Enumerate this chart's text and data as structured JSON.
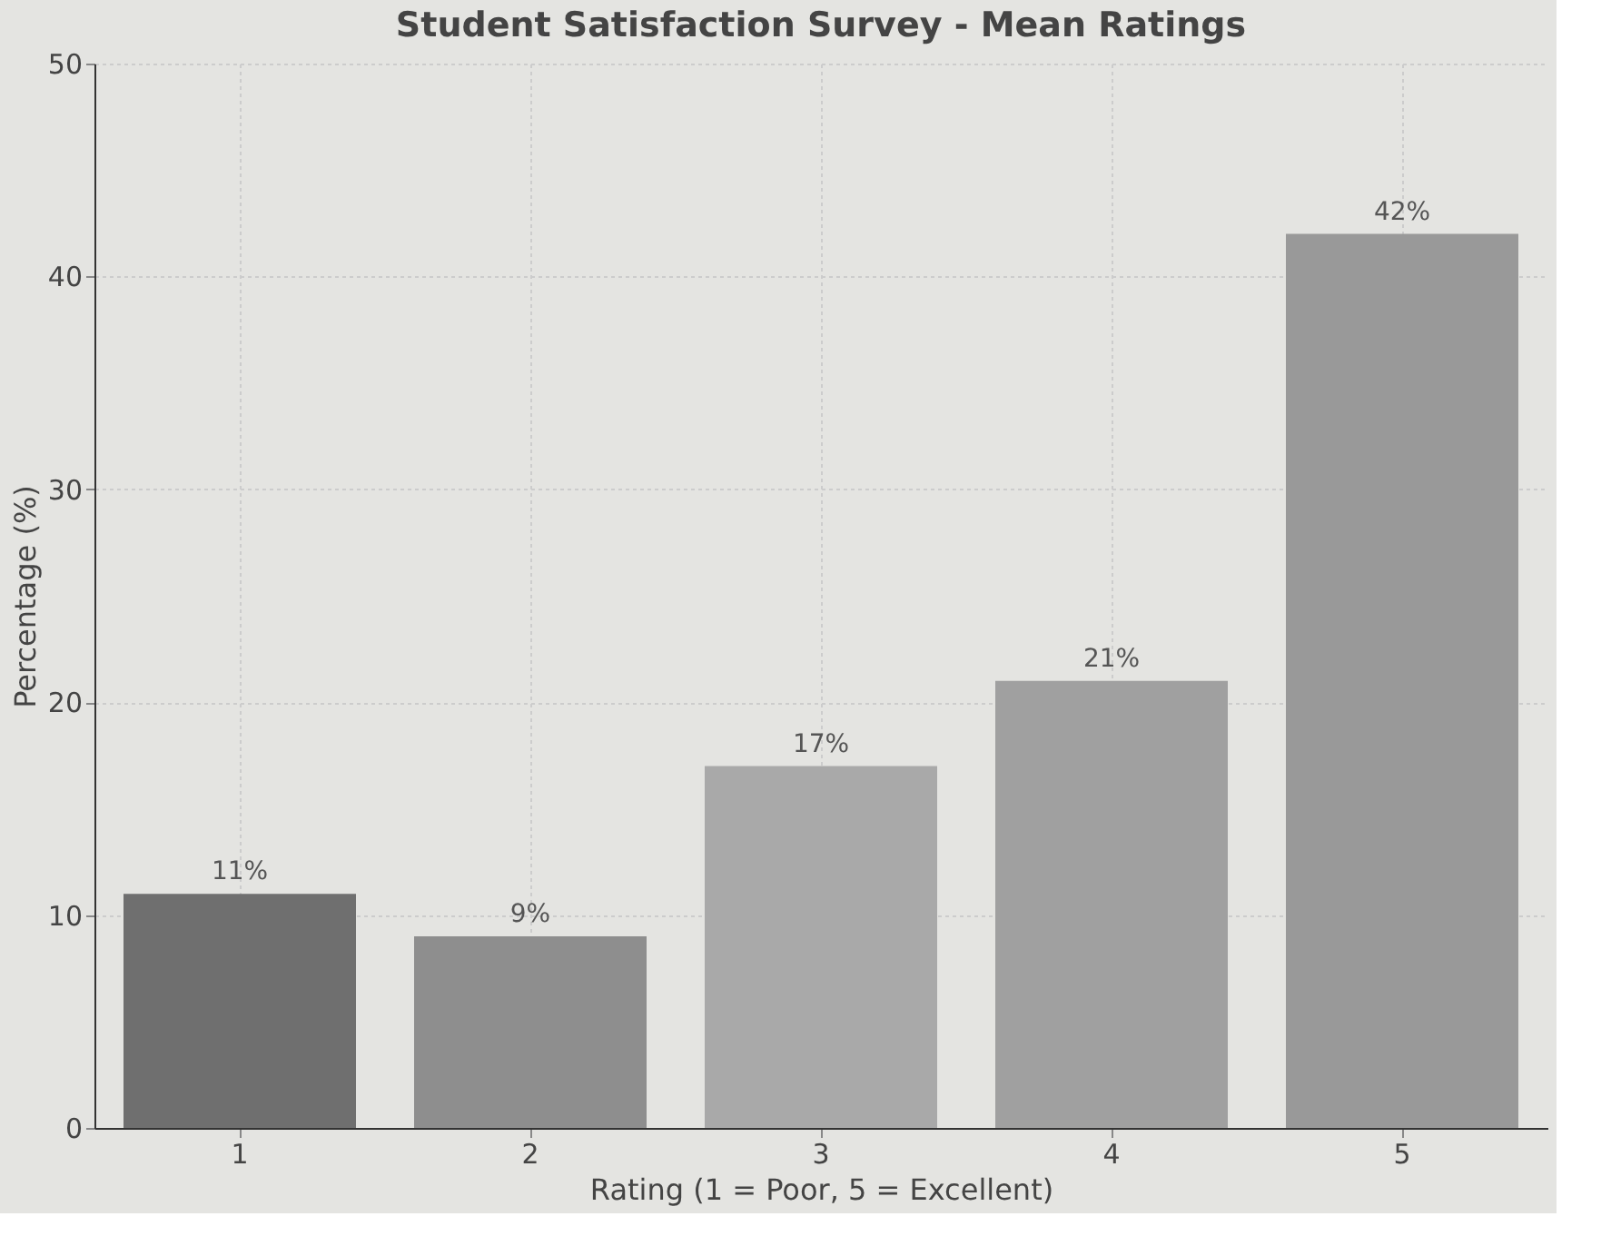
{
  "chart_data": {
    "type": "bar",
    "title": "Student Satisfaction Survey - Mean Ratings",
    "xlabel": "Rating (1 = Poor, 5 = Excellent)",
    "ylabel": "Percentage (%)",
    "categories": [
      "1",
      "2",
      "3",
      "4",
      "5"
    ],
    "values": [
      11,
      9,
      17,
      21,
      42
    ],
    "value_labels": [
      "11%",
      "9%",
      "17%",
      "21%",
      "42%"
    ],
    "colors": [
      "#6f6f6f",
      "#8e8e8e",
      "#a9a9a9",
      "#a0a0a0",
      "#999999"
    ],
    "ylim": [
      0,
      50
    ],
    "yticks": [
      0,
      10,
      20,
      30,
      40,
      50
    ],
    "grid": true
  }
}
